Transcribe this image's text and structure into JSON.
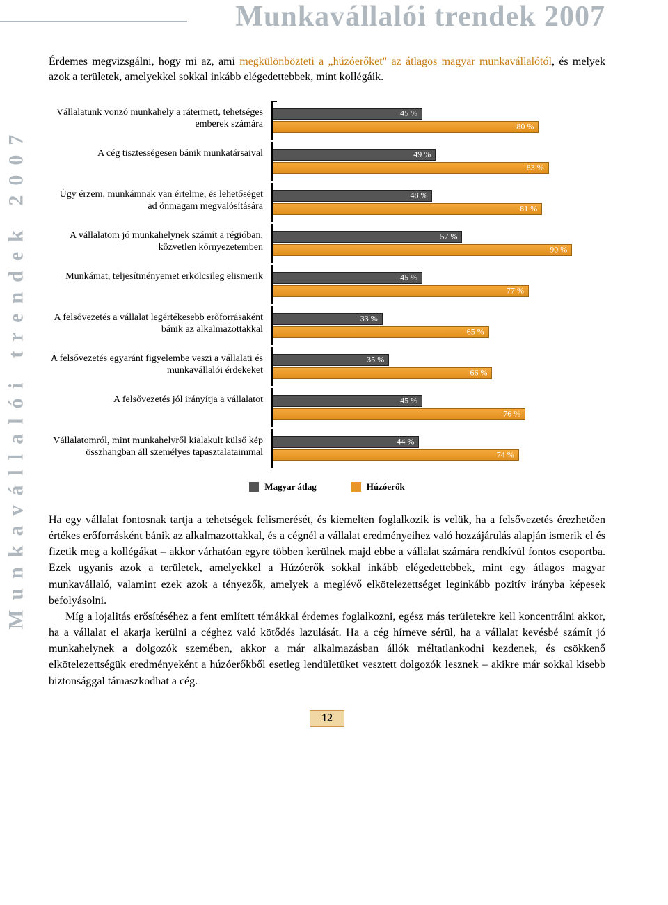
{
  "header_title": "Munkavállalói trendek 2007",
  "side_title": "Munkavállalói trendek 2007",
  "intro": {
    "pre": "Érdemes megvizsgálni, hogy mi az, ami ",
    "hl1": "megkülönbözteti a „húzóerőket\" az átlagos magyar munkavállalótól",
    "post": ", és melyek azok a területek, amelyekkel sokkal inkább elégedettebbek, mint kollégáik."
  },
  "chart": {
    "type": "bar",
    "max": 100,
    "series_a_color": "#555555",
    "series_b_color": "#e89529",
    "axis_color": "#000000",
    "rows": [
      {
        "label": "Vállalatunk vonzó munkahely a rátermett, tehetséges emberek számára",
        "a": 45,
        "b": 80
      },
      {
        "label": "A cég tisztességesen bánik munkatársaival",
        "a": 49,
        "b": 83
      },
      {
        "label": "Úgy érzem, munkámnak van értelme, és lehetőséget ad önmagam megvalósítására",
        "a": 48,
        "b": 81
      },
      {
        "label": "A vállalatom jó munkahelynek számít a régióban, közvetlen környezetemben",
        "a": 57,
        "b": 90
      },
      {
        "label": "Munkámat, teljesítményemet erkölcsileg elismerik",
        "a": 45,
        "b": 77
      },
      {
        "label": "A felsővezetés a vállalat legértékesebb erőforrásaként bánik az alkalmazottakkal",
        "a": 33,
        "b": 65
      },
      {
        "label": "A felsővezetés egyaránt figyelembe veszi a vállalati és munkavállalói érdekeket",
        "a": 35,
        "b": 66
      },
      {
        "label": "A felsővezetés jól irányítja a vállalatot",
        "a": 45,
        "b": 76
      },
      {
        "label": "Vállalatomról, mint munkahelyről kialakult külső kép összhangban áll személyes tapasztalataimmal",
        "a": 44,
        "b": 74
      }
    ],
    "legend_a": "Magyar átlag",
    "legend_b": "Húzóerők"
  },
  "body": {
    "p1": "Ha egy vállalat fontosnak tartja a tehetségek felismerését, és kiemelten foglalkozik is velük, ha a felsővezetés érezhetően értékes erőforrásként bánik az alkalmazottakkal, és a cégnél a vállalat eredményeihez való hozzájárulás alapján ismerik el és fizetik meg a kollégákat – akkor várhatóan egyre többen kerülnek majd ebbe a vállalat számára rendkívül fontos csoportba. Ezek ugyanis azok a területek, amelyekkel a Húzóerők sokkal inkább elégedettebbek, mint egy átlagos magyar munkavállaló, valamint ezek azok a tényezők, amelyek a meglévő elkötelezettséget leginkább pozitív irányba képesek befolyásolni.",
    "p2": "Míg a lojalitás erősítéséhez a fent említett témákkal érdemes foglalkozni, egész más területekre kell koncentrálni akkor, ha a vállalat el akarja kerülni a céghez való kötődés lazulását. Ha a cég hírneve sérül, ha a vállalat kevésbé számít jó munkahelynek a dolgozók szemében, akkor a már alkalmazásban állók méltatlankodni kezdenek, és csökkenő elkötelezettségük eredményeként a húzóerőkből esetleg lendületüket vesztett dolgozók lesznek – akikre már sokkal kisebb bizton­sággal támaszkodhat a cég."
  },
  "page_number": "12",
  "header_rule_width_pct": 28
}
